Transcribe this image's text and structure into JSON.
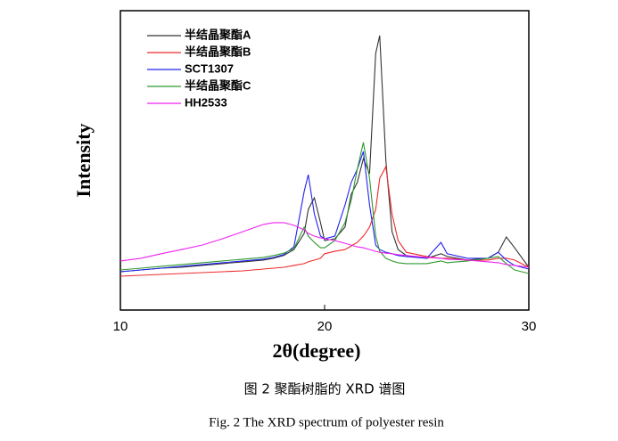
{
  "chart_data": {
    "type": "line",
    "x_label": "2θ(degree)",
    "y_label": "Intensity",
    "caption": "图 2  聚酯树脂的 XRD 谱图",
    "caption_en": "Fig. 2 The XRD spectrum of polyester resin",
    "x": [
      10,
      11,
      12,
      13,
      14,
      15,
      16,
      17,
      17.5,
      18,
      18.5,
      19,
      19.2,
      19.5,
      19.8,
      20,
      20.5,
      21,
      21.3,
      21.6,
      21.9,
      22.2,
      22.5,
      22.7,
      23,
      23.3,
      23.6,
      24,
      25,
      25.7,
      26,
      27,
      28,
      28.5,
      28.9,
      29.3,
      30
    ],
    "xlim": [
      10,
      30
    ],
    "xticks": [
      10,
      20,
      30
    ],
    "ylim": [
      0,
      100
    ],
    "legend": "upper-left",
    "series": [
      {
        "name": "半结晶聚酯A",
        "color": "#333333",
        "values": [
          12.8,
          13.4,
          14.0,
          14.3,
          14.9,
          15.5,
          16.1,
          16.7,
          17.3,
          18.2,
          20.2,
          25.6,
          33.6,
          37.5,
          29.2,
          23.2,
          23.8,
          27.7,
          38.7,
          42.6,
          50.6,
          45.5,
          85.7,
          91.7,
          50.0,
          26.2,
          20.2,
          18.2,
          17.3,
          18.8,
          17.9,
          16.7,
          17.3,
          19.3,
          24.4,
          20.8,
          14.3
        ]
      },
      {
        "name": "半结晶聚酯B",
        "color": "#ee2a2a",
        "values": [
          11.3,
          11.6,
          11.9,
          12.2,
          12.5,
          12.8,
          13.1,
          13.7,
          14.0,
          14.3,
          14.9,
          15.5,
          16.1,
          16.7,
          17.3,
          18.8,
          19.6,
          20.2,
          21.4,
          22.6,
          24.7,
          27.7,
          33.6,
          44.0,
          47.9,
          32.1,
          23.2,
          19.3,
          17.9,
          17.3,
          17.3,
          16.7,
          16.7,
          17.3,
          17.3,
          16.7,
          14.3
        ]
      },
      {
        "name": "SCT1307",
        "color": "#2222ee",
        "values": [
          12.8,
          13.4,
          14.0,
          14.6,
          15.2,
          15.8,
          16.4,
          17.0,
          17.6,
          18.5,
          21.1,
          39.6,
          45.2,
          32.1,
          24.7,
          23.8,
          24.7,
          35.1,
          42.6,
          47.0,
          53.0,
          35.1,
          21.7,
          20.2,
          19.3,
          18.8,
          18.2,
          17.9,
          17.3,
          22.6,
          18.8,
          17.3,
          17.3,
          19.3,
          16.7,
          14.9,
          13.7
        ]
      },
      {
        "name": "半结晶聚酯C",
        "color": "#2e9a2e",
        "values": [
          13.4,
          14.0,
          14.6,
          15.2,
          15.8,
          16.4,
          17.0,
          17.6,
          18.2,
          19.0,
          20.5,
          27.7,
          24.7,
          22.6,
          20.8,
          20.8,
          23.2,
          29.2,
          36.6,
          47.0,
          56.0,
          44.0,
          24.7,
          19.6,
          17.3,
          16.4,
          15.8,
          15.5,
          15.5,
          16.4,
          15.8,
          16.4,
          17.3,
          17.9,
          15.5,
          13.4,
          12.2
        ]
      },
      {
        "name": "HH2533",
        "color": "#ee22ee",
        "values": [
          16.4,
          17.3,
          18.8,
          20.2,
          21.7,
          23.8,
          26.2,
          28.6,
          29.2,
          29.2,
          28.3,
          26.8,
          25.6,
          24.7,
          24.1,
          23.8,
          23.2,
          22.3,
          21.7,
          21.1,
          20.8,
          20.2,
          19.6,
          19.3,
          19.0,
          18.8,
          18.5,
          18.2,
          17.6,
          17.3,
          17.0,
          16.7,
          16.1,
          15.8,
          15.2,
          14.9,
          14.3
        ]
      }
    ]
  }
}
